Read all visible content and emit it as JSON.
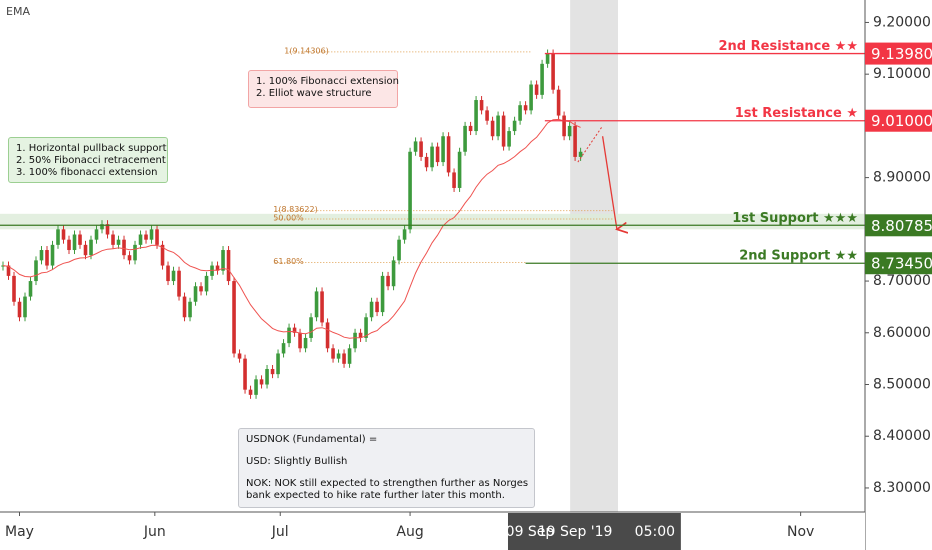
{
  "chart_data": {
    "type": "candlestick",
    "indicator": "EMA",
    "closes": [
      8.73,
      8.71,
      8.66,
      8.63,
      8.67,
      8.7,
      8.74,
      8.76,
      8.73,
      8.77,
      8.8,
      8.78,
      8.76,
      8.79,
      8.77,
      8.75,
      8.78,
      8.8,
      8.81,
      8.79,
      8.77,
      8.78,
      8.75,
      8.74,
      8.77,
      8.79,
      8.78,
      8.8,
      8.77,
      8.73,
      8.7,
      8.72,
      8.67,
      8.63,
      8.66,
      8.69,
      8.68,
      8.71,
      8.73,
      8.72,
      8.76,
      8.7,
      8.56,
      8.55,
      8.49,
      8.48,
      8.51,
      8.5,
      8.53,
      8.52,
      8.56,
      8.58,
      8.61,
      8.6,
      8.57,
      8.59,
      8.63,
      8.68,
      8.62,
      8.57,
      8.55,
      8.56,
      8.54,
      8.57,
      8.6,
      8.59,
      8.63,
      8.66,
      8.64,
      8.71,
      8.69,
      8.74,
      8.78,
      8.8,
      8.95,
      8.97,
      8.94,
      8.92,
      8.96,
      8.93,
      8.98,
      8.91,
      8.88,
      8.95,
      9.0,
      8.99,
      9.05,
      9.03,
      9.01,
      8.98,
      9.02,
      8.96,
      8.99,
      9.01,
      9.04,
      9.03,
      9.08,
      9.06,
      9.12,
      9.14,
      9.07,
      9.02,
      8.98,
      9.0,
      8.94,
      8.95
    ],
    "up_color": "#3d9a3d",
    "down_color": "#d32f2f",
    "ema_color": "#ef5350",
    "xlim": [
      -0.545,
      156.7
    ],
    "xticks": [
      {
        "value": 3,
        "label": "May"
      },
      {
        "value": 27.6,
        "label": "Jun"
      },
      {
        "value": 50.4,
        "label": "Jul"
      },
      {
        "value": 74,
        "label": "Aug"
      },
      {
        "value": 145,
        "label": "Nov"
      }
    ],
    "range_labels": [
      {
        "value": 95.8,
        "label": "09 Sep"
      },
      {
        "value": 104,
        "label": "19 Sep '19"
      },
      {
        "value": 118.5,
        "label": "05:00"
      }
    ],
    "highlight_range": [
      103.1,
      111.8
    ],
    "ylim": [
      8.2535,
      9.2434
    ],
    "yticks": [
      {
        "value": 9.2,
        "label": "9.20000"
      },
      {
        "value": 9.1,
        "label": "9.10000"
      },
      {
        "value": 8.9,
        "label": "8.90000"
      },
      {
        "value": 8.7,
        "label": "8.70000"
      },
      {
        "value": 8.6,
        "label": "8.60000"
      },
      {
        "value": 8.5,
        "label": "8.50000"
      },
      {
        "value": 8.4,
        "label": "8.40000"
      },
      {
        "value": 8.3,
        "label": "8.30000"
      }
    ],
    "support_zone": [
      8.8,
      8.83
    ],
    "levels": [
      {
        "name": "2nd Resistance ★★",
        "value": 9.1398,
        "label": "9.13980",
        "color": "#f23645",
        "x0": 98.5
      },
      {
        "name": "1st Resistance ★",
        "value": 9.01,
        "label": "9.01000",
        "color": "#f23645",
        "x0": 98.5
      },
      {
        "name": "1st Support ★★★",
        "value": 8.80785,
        "label": "8.80785",
        "color": "#3b7a24",
        "x0": -0.545
      },
      {
        "name": "2nd Support ★★",
        "value": 8.7345,
        "label": "8.73450",
        "color": "#3b7a24",
        "x0": 95
      }
    ],
    "fibs": [
      {
        "label": "1(9.14306)",
        "value": 9.14306,
        "x0": 51.5,
        "x1": 96
      },
      {
        "label": "1(8.83622)",
        "value": 8.83622,
        "x0": 49.5,
        "x1": 111
      },
      {
        "label": "50.00%",
        "value": 8.82,
        "x0": 49.5,
        "x1": 111
      },
      {
        "label": "61.80%",
        "value": 8.736,
        "x0": 49.5,
        "x1": 95
      }
    ],
    "notes": [
      [
        "1. Horizontal pullback support",
        "2. 50% Fibonacci retracement",
        "3. 100% fibonacci extension"
      ],
      [
        "1. 100% Fibonacci extension",
        "2. Elliot wave structure"
      ],
      [
        "USDNOK (Fundamental) =",
        "USD: Slightly Bullish",
        "NOK: NOK  still expected to strengthen further as Norges",
        "bank expected to hike rate further later this month."
      ]
    ]
  }
}
